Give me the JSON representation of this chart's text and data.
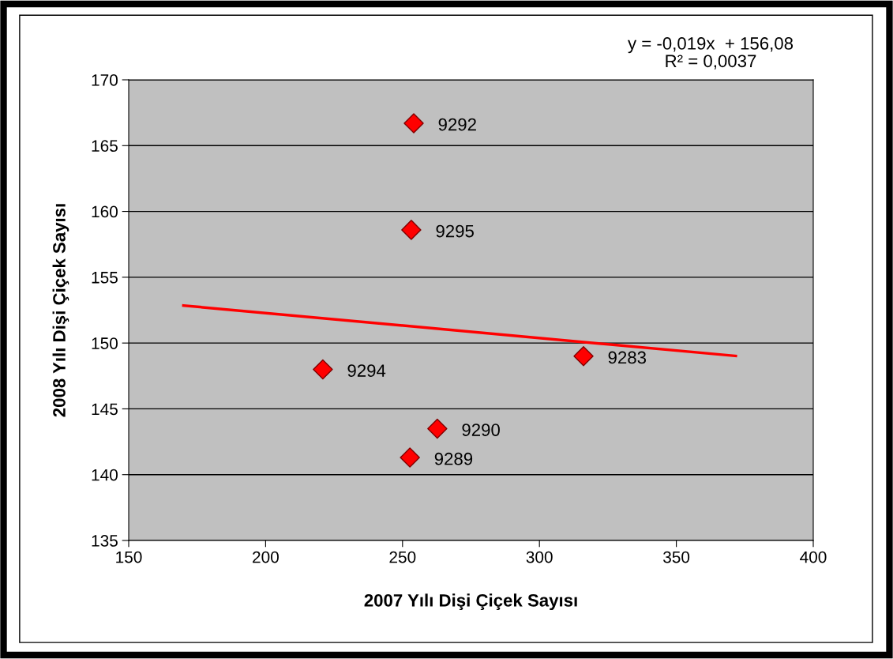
{
  "chart_data": {
    "type": "scatter",
    "xlabel": "2007 Yılı Dişi Çiçek Sayısı",
    "ylabel": "2008 Yılı Dişi Çiçek Sayısı",
    "x": [
      254.1,
      253.2,
      220.9,
      316.1,
      262.7,
      252.7
    ],
    "series": [
      {
        "color": "#ff0000",
        "values": [
          166.7,
          158.6,
          148.0,
          149.0,
          143.5,
          141.3
        ],
        "marker": "diamond"
      },
      {
        "type": "line",
        "color": "#ff0000",
        "x": [
          170,
          371.7
        ],
        "values": [
          152.85,
          149.02
        ],
        "marker": "none"
      }
    ],
    "annotations": [
      "y = -0,019x  + 156,08\nR² = 0,0037",
      {
        "text": "9292",
        "x": 254.1,
        "y": 166.7
      },
      {
        "text": "9295",
        "x": 253.2,
        "y": 158.6
      },
      {
        "text": "9294",
        "x": 220.9,
        "y": 148.0
      },
      {
        "text": "9283",
        "x": 316.1,
        "y": 149.0
      },
      {
        "text": "9290",
        "x": 262.7,
        "y": 143.5
      },
      {
        "text": "9289",
        "x": 252.7,
        "y": 141.3
      }
    ],
    "xlim": [
      150,
      400
    ],
    "xticks": [
      150,
      200,
      250,
      300,
      350,
      400
    ],
    "ylim": [
      135,
      170
    ],
    "yticks": [
      135,
      140,
      145,
      150,
      155,
      160,
      165,
      170
    ],
    "grid": "y",
    "legend": false
  }
}
